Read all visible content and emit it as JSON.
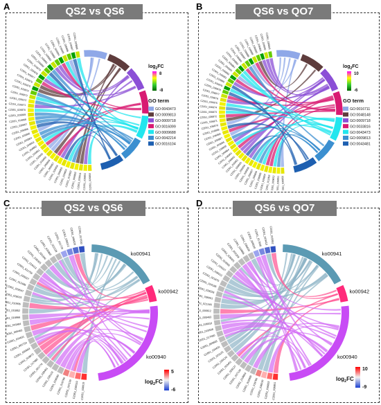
{
  "panels": [
    {
      "letter": "A",
      "title": "QS2 vs QS6",
      "legend": {
        "fc_title": "log",
        "fc_sub": "2",
        "fc_suffix": "FC",
        "fc_max": "8",
        "fc_min": "-8",
        "term_title": "GO term",
        "terms": [
          {
            "label": "GO:0043473",
            "color": "#8fa8e8"
          },
          {
            "label": "GO:0009813",
            "color": "#5e3c3c"
          },
          {
            "label": "GO:0009718",
            "color": "#8b4fd6"
          },
          {
            "label": "GO:0016099",
            "color": "#d81b72"
          },
          {
            "label": "GO:0009688",
            "color": "#22e6ee"
          },
          {
            "label": "GO:0042214",
            "color": "#3b8fd0"
          },
          {
            "label": "GO:0016104",
            "color": "#1d5fb0"
          }
        ]
      },
      "genes": [
        "CZ051_026850",
        "CZ051_026851",
        "CZ051_030011",
        "CZ051_006852",
        "CZ051_019853",
        "CZ051_026854",
        "CZ051_006855",
        "CZ051_026856",
        "CZ051_006857",
        "CZ051_006858",
        "CZ051_016859",
        "CZ051_026860",
        "CZ051_026861",
        "CZ051_006862",
        "CZ051_009863",
        "CZ051_026864",
        "CZ051_026865",
        "CZ051_006866",
        "CZ051_026867",
        "CZ051_016868",
        "CZ051_026869",
        "CZ051_026870",
        "CZ051_026871",
        "CZ051_026872",
        "CZ051_006873",
        "CZ051_026874",
        "CZ051_026875",
        "CZ051_026876",
        "CZ051_006877",
        "CZ051_026878",
        "CZ051_016879",
        "CZ051_026880",
        "CZ051_026881",
        "CZ051_026882",
        "CZ051_026883",
        "CZ051_026884",
        "CZ051_026885",
        "CZ051_026886",
        "CZ051_026887",
        "CZ051_026888"
      ]
    },
    {
      "letter": "B",
      "title": "QS6 vs QO7",
      "legend": {
        "fc_title": "log",
        "fc_sub": "2",
        "fc_suffix": "FC",
        "fc_max": "10",
        "fc_min": "-6",
        "term_title": "GO term",
        "terms": [
          {
            "label": "GO:0016711",
            "color": "#8fa8e8"
          },
          {
            "label": "GO:0048148",
            "color": "#5e3c3c"
          },
          {
            "label": "GO:0009718",
            "color": "#8b4fd6"
          },
          {
            "label": "GO:0033816",
            "color": "#d81b72"
          },
          {
            "label": "GO:0043473",
            "color": "#22e6ee"
          },
          {
            "label": "GO:0009813",
            "color": "#3b8fd0"
          },
          {
            "label": "GO:0043481",
            "color": "#1d5fb0"
          }
        ]
      },
      "genes": [
        "CZ051_036850",
        "CZ051_036851",
        "CZ051_030652",
        "CZ051_011853",
        "CZ051_026854",
        "CZ051_036855",
        "CZ051_006856",
        "CZ051_036857",
        "CZ051_026858",
        "CZ051_036859",
        "CZ051_036860",
        "CZ051_016861",
        "CZ051_036862",
        "CZ051_036863",
        "CZ051_006864",
        "CZ051_036865",
        "CZ051_026866",
        "CZ051_036867",
        "CZ051_036868",
        "CZ051_016869",
        "CZ051_036870",
        "CZ051_036871",
        "CZ051_036872",
        "CZ051_006873",
        "CZ051_036874",
        "CZ051_036875",
        "CZ051_026876",
        "CZ051_036877",
        "CZ051_036878",
        "CZ051_036879",
        "CZ051_016880",
        "CZ051_036881",
        "CZ051_036882",
        "CZ051_006883",
        "CZ051_036884",
        "CZ051_036885",
        "CZ051_036886",
        "CZ051_036887",
        "CZ051_036888",
        "CZ051_036889",
        "CZ051_036890",
        "CZ051_006891",
        "CZ051_036892",
        "CZ051_036893"
      ]
    },
    {
      "letter": "C",
      "title": "QS2 vs QS6",
      "legend": {
        "fc_title": "log",
        "fc_sub": "2",
        "fc_suffix": "FC",
        "fc_max": "5",
        "fc_min": "-6"
      },
      "pathways": [
        "ko00941",
        "ko00942",
        "ko00940"
      ],
      "genes": [
        "CZ051_030619",
        "CZ051_030519",
        "CZ051_037130",
        "CZ051_019786",
        "CZ051_018590",
        "CZ051_028123",
        "CZ051_028451",
        "CZ051_021770",
        "CZ051_017685",
        "CZ051_018872",
        "CZ051_009663",
        "CZ051_001734",
        "CZ051_024631",
        "CZ051_005463",
        "CZ051_001584",
        "CZ051_016966",
        "CZ051_015852",
        "CZ051_010906",
        "CZ051_028025",
        "CZ051_029547",
        "CZ051_012486",
        "CZ051_026327",
        "CZ051_021756",
        "CZ051_019413",
        "CZ051_028325",
        "CZ051_021346",
        "CZ051_020865",
        "CZ051_022228",
        "CZ051_021770",
        "CZ051_036012",
        "CZ051_006520",
        "CZ051_017830"
      ]
    },
    {
      "letter": "D",
      "title": "QS6 vs QO7",
      "legend": {
        "fc_title": "log",
        "fc_sub": "2",
        "fc_suffix": "FC",
        "fc_max": "10",
        "fc_min": "-9"
      },
      "pathways": [
        "ko00941",
        "ko00942",
        "ko00940"
      ],
      "genes": [
        "CZ051_036851",
        "CZ051_036853",
        "CZ051_036019",
        "CZ051_019780",
        "CZ051_018600",
        "CZ051_018654",
        "CZ051_037134",
        "CZ051_028127",
        "CZ051_028451",
        "CZ051_029120",
        "CZ051_021125",
        "CZ051_024631",
        "CZ051_009663",
        "CZ051_017690",
        "CZ051_018508",
        "CZ051_036016",
        "CZ051_005463",
        "CZ051_000612",
        "CZ051_021346",
        "CZ051_036051",
        "CZ051_028326",
        "CZ051_024186",
        "CZ051_021870",
        "CZ051_036012",
        "CZ051_026327",
        "CZ051_010906",
        "CZ051_028025",
        "CZ051_022228",
        "CZ051_020865",
        "CZ051_036020",
        "CZ051_006520",
        "CZ051_017830",
        "CZ051_019413",
        "CZ051_015852"
      ]
    }
  ]
}
